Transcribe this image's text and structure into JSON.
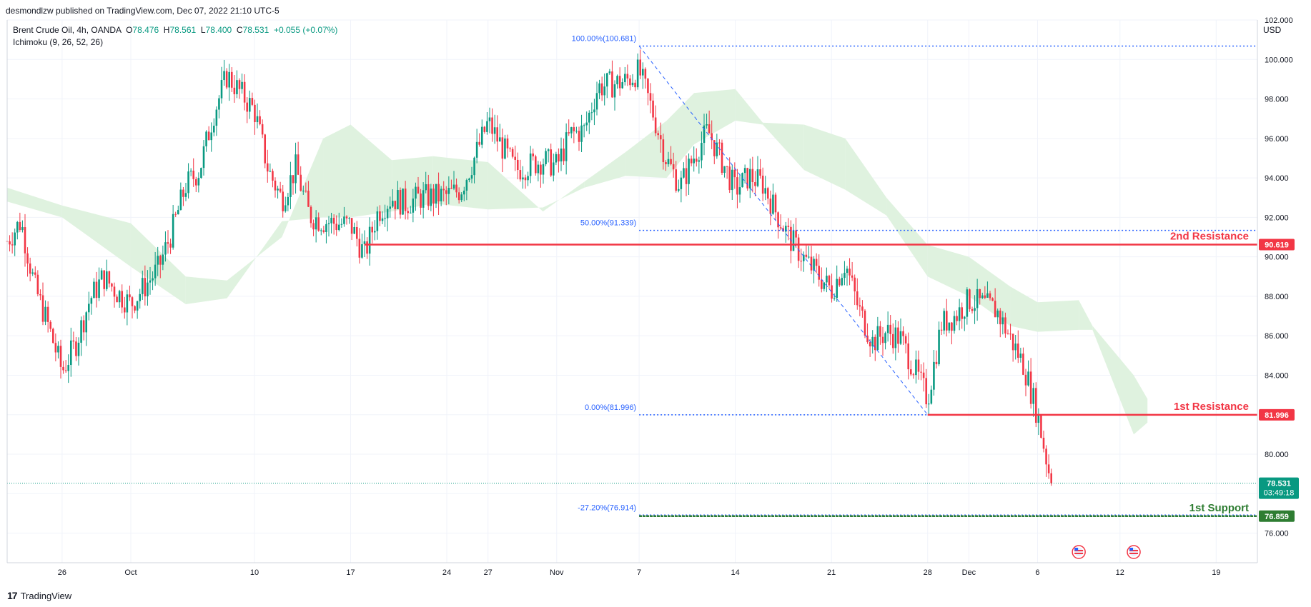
{
  "header": {
    "published": "desmondlzw published on TradingView.com, Dec 07, 2022 21:10 UTC-5",
    "symbol": "Brent Crude Oil, 4h, OANDA",
    "ohlc": {
      "open_label": "O",
      "open": "78.476",
      "high_label": "H",
      "high": "78.561",
      "low_label": "L",
      "low": "78.400",
      "close_label": "C",
      "close": "78.531",
      "change": "+0.055 (+0.07%)"
    },
    "indicator": "Ichimoku (9, 26, 52, 26)",
    "currency": "USD"
  },
  "footer": {
    "logo": "17",
    "brand": "TradingView"
  },
  "colors": {
    "up": "#089981",
    "down": "#f23645",
    "cloud_green": "#dff2df",
    "cloud_red": "#fcd6d6",
    "fib": "#2962ff",
    "resistance": "#f23645",
    "support": "#2e7d32",
    "price": "#089981"
  },
  "chart_data": {
    "type": "candlestick",
    "ylim": [
      74.5,
      102.0
    ],
    "y_ticks": [
      76,
      78,
      80,
      82,
      84,
      86,
      88,
      90,
      92,
      94,
      96,
      98,
      100,
      102
    ],
    "y_tick_labels": [
      "76.000",
      "78.000",
      "80.000",
      "82.000",
      "84.000",
      "86.000",
      "88.000",
      "90.000",
      "92.000",
      "94.000",
      "96.000",
      "98.000",
      "100.000",
      "102.000"
    ],
    "x_axis": {
      "start": "2022-09-22",
      "end": "2022-12-22",
      "ticks": [
        {
          "date": "2022-09-26",
          "label": "26"
        },
        {
          "date": "2022-10-01",
          "label": "Oct"
        },
        {
          "date": "2022-10-10",
          "label": "10"
        },
        {
          "date": "2022-10-17",
          "label": "17"
        },
        {
          "date": "2022-10-24",
          "label": "24"
        },
        {
          "date": "2022-10-27",
          "label": "27"
        },
        {
          "date": "2022-11-01",
          "label": "Nov"
        },
        {
          "date": "2022-11-07",
          "label": "7"
        },
        {
          "date": "2022-11-14",
          "label": "14"
        },
        {
          "date": "2022-11-21",
          "label": "21"
        },
        {
          "date": "2022-11-28",
          "label": "28"
        },
        {
          "date": "2022-12-01",
          "label": "Dec"
        },
        {
          "date": "2022-12-06",
          "label": "6"
        },
        {
          "date": "2022-12-12",
          "label": "12"
        },
        {
          "date": "2022-12-19",
          "label": "19"
        }
      ]
    },
    "price_path": [
      {
        "date": "2022-09-22",
        "price": 90.8
      },
      {
        "date": "2022-09-23",
        "price": 91.8
      },
      {
        "date": "2022-09-24",
        "price": 88.5
      },
      {
        "date": "2022-09-25",
        "price": 86.5
      },
      {
        "date": "2022-09-26",
        "price": 84.2
      },
      {
        "date": "2022-09-27",
        "price": 85.6
      },
      {
        "date": "2022-09-28",
        "price": 87.8
      },
      {
        "date": "2022-09-29",
        "price": 89.0
      },
      {
        "date": "2022-09-30",
        "price": 88.2
      },
      {
        "date": "2022-10-01",
        "price": 87.6
      },
      {
        "date": "2022-10-03",
        "price": 89.4
      },
      {
        "date": "2022-10-04",
        "price": 91.3
      },
      {
        "date": "2022-10-05",
        "price": 93.6
      },
      {
        "date": "2022-10-06",
        "price": 94.4
      },
      {
        "date": "2022-10-07",
        "price": 97.2
      },
      {
        "date": "2022-10-08",
        "price": 99.2
      },
      {
        "date": "2022-10-10",
        "price": 97.4
      },
      {
        "date": "2022-10-11",
        "price": 94.4
      },
      {
        "date": "2022-10-12",
        "price": 92.9
      },
      {
        "date": "2022-10-13",
        "price": 94.5
      },
      {
        "date": "2022-10-14",
        "price": 92.1
      },
      {
        "date": "2022-10-15",
        "price": 91.8
      },
      {
        "date": "2022-10-17",
        "price": 91.6
      },
      {
        "date": "2022-10-18",
        "price": 90.1
      },
      {
        "date": "2022-10-19",
        "price": 92.3
      },
      {
        "date": "2022-10-20",
        "price": 93.0
      },
      {
        "date": "2022-10-21",
        "price": 92.7
      },
      {
        "date": "2022-10-22",
        "price": 93.0
      },
      {
        "date": "2022-10-24",
        "price": 93.1
      },
      {
        "date": "2022-10-25",
        "price": 93.4
      },
      {
        "date": "2022-10-26",
        "price": 95.0
      },
      {
        "date": "2022-10-27",
        "price": 96.8
      },
      {
        "date": "2022-10-28",
        "price": 95.6
      },
      {
        "date": "2022-10-29",
        "price": 94.4
      },
      {
        "date": "2022-10-31",
        "price": 94.9
      },
      {
        "date": "2022-11-01",
        "price": 94.6
      },
      {
        "date": "2022-11-02",
        "price": 96.2
      },
      {
        "date": "2022-11-03",
        "price": 96.4
      },
      {
        "date": "2022-11-04",
        "price": 98.6
      },
      {
        "date": "2022-11-06",
        "price": 98.9
      },
      {
        "date": "2022-11-07",
        "price": 99.4
      },
      {
        "date": "2022-11-08",
        "price": 97.3
      },
      {
        "date": "2022-11-09",
        "price": 94.9
      },
      {
        "date": "2022-11-10",
        "price": 93.6
      },
      {
        "date": "2022-11-11",
        "price": 95.1
      },
      {
        "date": "2022-11-12",
        "price": 96.4
      },
      {
        "date": "2022-11-14",
        "price": 93.4
      },
      {
        "date": "2022-11-15",
        "price": 94.1
      },
      {
        "date": "2022-11-16",
        "price": 93.7
      },
      {
        "date": "2022-11-17",
        "price": 92.2
      },
      {
        "date": "2022-11-18",
        "price": 90.9
      },
      {
        "date": "2022-11-19",
        "price": 89.9
      },
      {
        "date": "2022-11-21",
        "price": 88.3
      },
      {
        "date": "2022-11-22",
        "price": 89.7
      },
      {
        "date": "2022-11-23",
        "price": 87.3
      },
      {
        "date": "2022-11-24",
        "price": 85.7
      },
      {
        "date": "2022-11-25",
        "price": 86.2
      },
      {
        "date": "2022-11-26",
        "price": 85.9
      },
      {
        "date": "2022-11-28",
        "price": 82.8
      },
      {
        "date": "2022-11-29",
        "price": 86.6
      },
      {
        "date": "2022-11-30",
        "price": 87.0
      },
      {
        "date": "2022-12-01",
        "price": 87.8
      },
      {
        "date": "2022-12-02",
        "price": 87.6
      },
      {
        "date": "2022-12-03",
        "price": 87.3
      },
      {
        "date": "2022-12-05",
        "price": 84.5
      },
      {
        "date": "2022-12-06",
        "price": 82.0
      },
      {
        "date": "2022-12-07",
        "price": 78.5
      }
    ],
    "cloud_top": [
      {
        "date": "2022-09-22",
        "price": 93.5
      },
      {
        "date": "2022-09-26",
        "price": 92.6
      },
      {
        "date": "2022-10-01",
        "price": 91.7
      },
      {
        "date": "2022-10-05",
        "price": 89.0
      },
      {
        "date": "2022-10-08",
        "price": 88.8
      },
      {
        "date": "2022-10-12",
        "price": 91.0
      },
      {
        "date": "2022-10-15",
        "price": 96.0
      },
      {
        "date": "2022-10-17",
        "price": 96.7
      },
      {
        "date": "2022-10-20",
        "price": 94.9
      },
      {
        "date": "2022-10-23",
        "price": 95.1
      },
      {
        "date": "2022-10-27",
        "price": 94.8
      },
      {
        "date": "2022-10-31",
        "price": 92.3
      },
      {
        "date": "2022-11-03",
        "price": 93.8
      },
      {
        "date": "2022-11-06",
        "price": 95.3
      },
      {
        "date": "2022-11-09",
        "price": 96.9
      },
      {
        "date": "2022-11-11",
        "price": 98.3
      },
      {
        "date": "2022-11-14",
        "price": 98.5
      },
      {
        "date": "2022-11-16",
        "price": 96.8
      },
      {
        "date": "2022-11-19",
        "price": 96.7
      },
      {
        "date": "2022-11-22",
        "price": 96.0
      },
      {
        "date": "2022-11-25",
        "price": 93.0
      },
      {
        "date": "2022-11-28",
        "price": 90.6
      },
      {
        "date": "2022-12-01",
        "price": 90.0
      },
      {
        "date": "2022-12-04",
        "price": 88.5
      },
      {
        "date": "2022-12-06",
        "price": 87.7
      },
      {
        "date": "2022-12-09",
        "price": 87.8
      },
      {
        "date": "2022-12-10",
        "price": 86.5
      },
      {
        "date": "2022-12-13",
        "price": 84.0
      },
      {
        "date": "2022-12-14",
        "price": 82.8
      }
    ],
    "cloud_bottom": [
      {
        "date": "2022-09-22",
        "price": 92.8
      },
      {
        "date": "2022-09-26",
        "price": 92.0
      },
      {
        "date": "2022-10-01",
        "price": 89.5
      },
      {
        "date": "2022-10-05",
        "price": 87.6
      },
      {
        "date": "2022-10-08",
        "price": 87.9
      },
      {
        "date": "2022-10-12",
        "price": 91.8
      },
      {
        "date": "2022-10-15",
        "price": 92.0
      },
      {
        "date": "2022-10-17",
        "price": 92.0
      },
      {
        "date": "2022-10-20",
        "price": 92.3
      },
      {
        "date": "2022-10-23",
        "price": 92.7
      },
      {
        "date": "2022-10-27",
        "price": 92.4
      },
      {
        "date": "2022-10-31",
        "price": 92.5
      },
      {
        "date": "2022-11-03",
        "price": 93.5
      },
      {
        "date": "2022-11-06",
        "price": 94.1
      },
      {
        "date": "2022-11-09",
        "price": 94.0
      },
      {
        "date": "2022-11-11",
        "price": 95.7
      },
      {
        "date": "2022-11-14",
        "price": 96.9
      },
      {
        "date": "2022-11-16",
        "price": 96.7
      },
      {
        "date": "2022-11-19",
        "price": 94.4
      },
      {
        "date": "2022-11-22",
        "price": 93.4
      },
      {
        "date": "2022-11-25",
        "price": 92.1
      },
      {
        "date": "2022-11-28",
        "price": 89.0
      },
      {
        "date": "2022-12-01",
        "price": 88.0
      },
      {
        "date": "2022-12-04",
        "price": 86.5
      },
      {
        "date": "2022-12-06",
        "price": 86.2
      },
      {
        "date": "2022-12-09",
        "price": 86.3
      },
      {
        "date": "2022-12-10",
        "price": 86.3
      },
      {
        "date": "2022-12-13",
        "price": 81.0
      },
      {
        "date": "2022-12-14",
        "price": 81.6
      }
    ],
    "fibonacci": {
      "start_date": "2022-11-07",
      "end_date": "2022-12-22",
      "levels": [
        {
          "label": "100.00%(100.681)",
          "price": 100.681
        },
        {
          "label": "50.00%(91.339)",
          "price": 91.339
        },
        {
          "label": "0.00%(81.996)",
          "price": 81.996
        },
        {
          "label": "-27.20%(76.914)",
          "price": 76.914
        }
      ],
      "trend_line": {
        "from_date": "2022-11-07",
        "from_price": 100.681,
        "to_date": "2022-11-28",
        "to_price": 81.996
      }
    },
    "horizontal_levels": [
      {
        "label": "2nd Resistance",
        "price": 90.619,
        "price_label": "90.619",
        "from_date": "2022-10-18",
        "kind": "resistance"
      },
      {
        "label": "1st Resistance",
        "price": 81.996,
        "price_label": "81.996",
        "from_date": "2022-11-28",
        "kind": "resistance"
      },
      {
        "label": "1st Support",
        "price": 76.859,
        "price_label": "76.859",
        "from_date": "2022-11-07",
        "kind": "support"
      }
    ],
    "current_price": {
      "price": 78.531,
      "label": "78.531",
      "countdown": "03:49:18"
    },
    "events": [
      {
        "date": "2022-12-09"
      },
      {
        "date": "2022-12-13"
      }
    ]
  }
}
